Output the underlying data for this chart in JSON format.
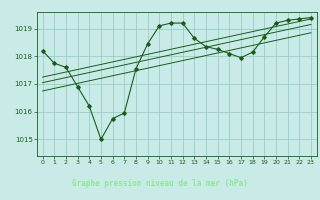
{
  "bg_color": "#c8ebe8",
  "plot_bg": "#c8ebe8",
  "footer_bg": "#2d6b2d",
  "footer_text_color": "#90e890",
  "grid_color": "#90c8c0",
  "line_color": "#1a5c1a",
  "title": "Graphe pression niveau de la mer (hPa)",
  "xlim": [
    -0.5,
    23.5
  ],
  "ylim": [
    1014.4,
    1019.6
  ],
  "yticks": [
    1015,
    1016,
    1017,
    1018,
    1019
  ],
  "xticks": [
    0,
    1,
    2,
    3,
    4,
    5,
    6,
    7,
    8,
    9,
    10,
    11,
    12,
    13,
    14,
    15,
    16,
    17,
    18,
    19,
    20,
    21,
    22,
    23
  ],
  "main_x": [
    0,
    1,
    2,
    3,
    4,
    5,
    6,
    7,
    8,
    9,
    10,
    11,
    12,
    13,
    14,
    15,
    16,
    17,
    18,
    19,
    20,
    21,
    22,
    23
  ],
  "main_y": [
    1018.2,
    1017.75,
    1017.6,
    1016.9,
    1016.2,
    1015.0,
    1015.75,
    1015.95,
    1017.55,
    1018.45,
    1019.1,
    1019.2,
    1019.2,
    1018.65,
    1018.35,
    1018.25,
    1018.1,
    1017.95,
    1018.15,
    1018.7,
    1019.2,
    1019.3,
    1019.35,
    1019.4
  ],
  "trend1_x": [
    0,
    23
  ],
  "trend1_y": [
    1017.05,
    1019.15
  ],
  "trend2_x": [
    0,
    23
  ],
  "trend2_y": [
    1016.75,
    1018.85
  ],
  "trend3_x": [
    0,
    23
  ],
  "trend3_y": [
    1017.25,
    1019.35
  ]
}
